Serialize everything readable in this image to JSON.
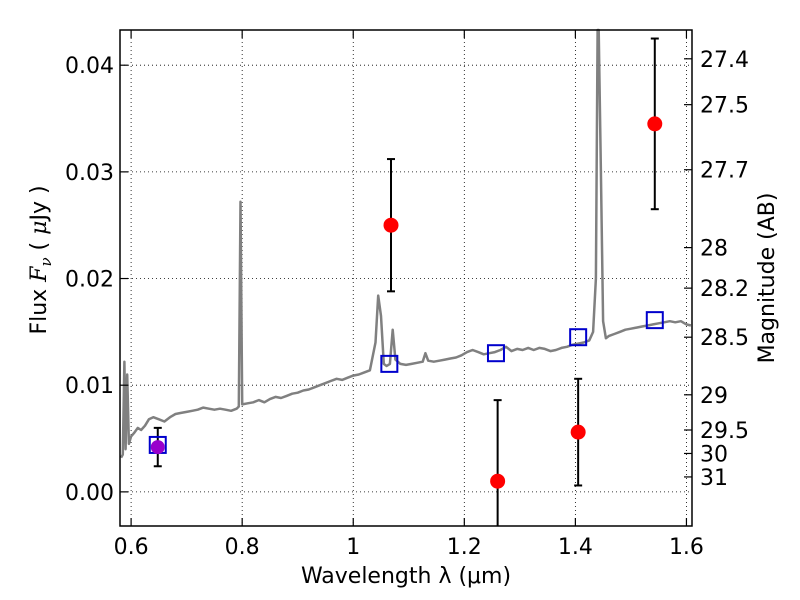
{
  "chart_data": {
    "type": "scatter",
    "xlabel": "Wavelength  λ (μm)",
    "ylabel": "Flux  F_ν  ( μJy )",
    "ylabel_right": "Magnitude (AB)",
    "xlim": [
      0.58,
      1.61
    ],
    "ylim": [
      -0.0032,
      0.0433
    ],
    "grid": true,
    "x_ticks": [
      {
        "value": 0.6,
        "label": "0.6"
      },
      {
        "value": 0.8,
        "label": "0.8"
      },
      {
        "value": 1.0,
        "label": "1"
      },
      {
        "value": 1.2,
        "label": "1.2"
      },
      {
        "value": 1.4,
        "label": "1.4"
      },
      {
        "value": 1.6,
        "label": "1.6"
      }
    ],
    "y_ticks": [
      {
        "value": 0.0,
        "label": "0.00"
      },
      {
        "value": 0.01,
        "label": "0.01"
      },
      {
        "value": 0.02,
        "label": "0.02"
      },
      {
        "value": 0.03,
        "label": "0.03"
      },
      {
        "value": 0.04,
        "label": "0.04"
      }
    ],
    "right_ticks": [
      {
        "flux": 0.0406,
        "label": "27.4"
      },
      {
        "flux": 0.0363,
        "label": "27.5"
      },
      {
        "flux": 0.0302,
        "label": "27.7"
      },
      {
        "flux": 0.0229,
        "label": "28"
      },
      {
        "flux": 0.0191,
        "label": "28.2"
      },
      {
        "flux": 0.0145,
        "label": "28.5"
      },
      {
        "flux": 0.0091,
        "label": "29"
      },
      {
        "flux": 0.0058,
        "label": "29.5"
      },
      {
        "flux": 0.0036,
        "label": "30"
      },
      {
        "flux": 0.0014,
        "label": "31"
      }
    ],
    "spectrum_color": "#808080",
    "spectrum": [
      [
        0.582,
        0.0032
      ],
      [
        0.585,
        0.0035
      ],
      [
        0.588,
        0.0122
      ],
      [
        0.59,
        0.004
      ],
      [
        0.593,
        0.011
      ],
      [
        0.596,
        0.0045
      ],
      [
        0.6,
        0.0052
      ],
      [
        0.605,
        0.0055
      ],
      [
        0.612,
        0.006
      ],
      [
        0.618,
        0.0058
      ],
      [
        0.625,
        0.0062
      ],
      [
        0.632,
        0.0068
      ],
      [
        0.64,
        0.007
      ],
      [
        0.65,
        0.0068
      ],
      [
        0.66,
        0.0066
      ],
      [
        0.67,
        0.007
      ],
      [
        0.68,
        0.0073
      ],
      [
        0.69,
        0.0074
      ],
      [
        0.7,
        0.0075
      ],
      [
        0.71,
        0.0076
      ],
      [
        0.72,
        0.0077
      ],
      [
        0.73,
        0.0079
      ],
      [
        0.74,
        0.0078
      ],
      [
        0.75,
        0.0077
      ],
      [
        0.76,
        0.0078
      ],
      [
        0.77,
        0.0077
      ],
      [
        0.78,
        0.0076
      ],
      [
        0.79,
        0.0078
      ],
      [
        0.794,
        0.008
      ],
      [
        0.797,
        0.0272
      ],
      [
        0.8,
        0.0082
      ],
      [
        0.81,
        0.0083
      ],
      [
        0.82,
        0.0084
      ],
      [
        0.83,
        0.0086
      ],
      [
        0.84,
        0.0084
      ],
      [
        0.85,
        0.0087
      ],
      [
        0.86,
        0.0089
      ],
      [
        0.87,
        0.0088
      ],
      [
        0.88,
        0.009
      ],
      [
        0.89,
        0.0092
      ],
      [
        0.9,
        0.0093
      ],
      [
        0.91,
        0.0095
      ],
      [
        0.92,
        0.0096
      ],
      [
        0.93,
        0.0098
      ],
      [
        0.94,
        0.01
      ],
      [
        0.95,
        0.0102
      ],
      [
        0.96,
        0.0104
      ],
      [
        0.97,
        0.0106
      ],
      [
        0.98,
        0.0105
      ],
      [
        0.99,
        0.0107
      ],
      [
        1.0,
        0.0109
      ],
      [
        1.01,
        0.011
      ],
      [
        1.02,
        0.0112
      ],
      [
        1.03,
        0.0114
      ],
      [
        1.04,
        0.014
      ],
      [
        1.045,
        0.0184
      ],
      [
        1.05,
        0.0165
      ],
      [
        1.055,
        0.012
      ],
      [
        1.06,
        0.0118
      ],
      [
        1.066,
        0.012
      ],
      [
        1.071,
        0.0152
      ],
      [
        1.076,
        0.0124
      ],
      [
        1.085,
        0.012
      ],
      [
        1.095,
        0.0119
      ],
      [
        1.105,
        0.012
      ],
      [
        1.115,
        0.0121
      ],
      [
        1.125,
        0.0122
      ],
      [
        1.13,
        0.013
      ],
      [
        1.135,
        0.0123
      ],
      [
        1.145,
        0.0122
      ],
      [
        1.155,
        0.0123
      ],
      [
        1.165,
        0.0124
      ],
      [
        1.175,
        0.0125
      ],
      [
        1.185,
        0.0126
      ],
      [
        1.195,
        0.0128
      ],
      [
        1.205,
        0.0131
      ],
      [
        1.215,
        0.0133
      ],
      [
        1.225,
        0.0131
      ],
      [
        1.235,
        0.0129
      ],
      [
        1.245,
        0.013
      ],
      [
        1.255,
        0.0131
      ],
      [
        1.265,
        0.0133
      ],
      [
        1.275,
        0.0136
      ],
      [
        1.285,
        0.0132
      ],
      [
        1.295,
        0.0134
      ],
      [
        1.305,
        0.0133
      ],
      [
        1.315,
        0.0135
      ],
      [
        1.325,
        0.0133
      ],
      [
        1.335,
        0.0135
      ],
      [
        1.345,
        0.0134
      ],
      [
        1.355,
        0.0132
      ],
      [
        1.365,
        0.0133
      ],
      [
        1.375,
        0.0135
      ],
      [
        1.385,
        0.0136
      ],
      [
        1.395,
        0.0138
      ],
      [
        1.405,
        0.0139
      ],
      [
        1.415,
        0.014
      ],
      [
        1.425,
        0.0142
      ],
      [
        1.432,
        0.015
      ],
      [
        1.437,
        0.02
      ],
      [
        1.44,
        0.0433
      ],
      [
        1.442,
        0.0433
      ],
      [
        1.446,
        0.03
      ],
      [
        1.45,
        0.016
      ],
      [
        1.455,
        0.0144
      ],
      [
        1.46,
        0.0146
      ],
      [
        1.47,
        0.0148
      ],
      [
        1.48,
        0.015
      ],
      [
        1.49,
        0.0152
      ],
      [
        1.5,
        0.0153
      ],
      [
        1.51,
        0.0154
      ],
      [
        1.52,
        0.0155
      ],
      [
        1.53,
        0.0156
      ],
      [
        1.54,
        0.0157
      ],
      [
        1.55,
        0.0158
      ],
      [
        1.56,
        0.0159
      ],
      [
        1.57,
        0.016
      ],
      [
        1.58,
        0.0159
      ],
      [
        1.59,
        0.016
      ],
      [
        1.6,
        0.0157
      ],
      [
        1.608,
        0.0156
      ]
    ],
    "model_points": {
      "color": "#0000cc",
      "x": [
        0.648,
        1.065,
        1.257,
        1.405,
        1.543
      ],
      "y": [
        0.0044,
        0.012,
        0.013,
        0.0145,
        0.0161
      ]
    },
    "observed_points": {
      "color": "#ff0000",
      "x": [
        1.068,
        1.26,
        1.405,
        1.543
      ],
      "y": [
        0.025,
        0.001,
        0.0056,
        0.0345
      ],
      "err": [
        0.0062,
        0.0076,
        0.005,
        0.008
      ]
    },
    "highlight_points": {
      "color": "#9900cc",
      "x": [
        0.648
      ],
      "y": [
        0.0042
      ],
      "err": [
        0.0018
      ]
    }
  }
}
